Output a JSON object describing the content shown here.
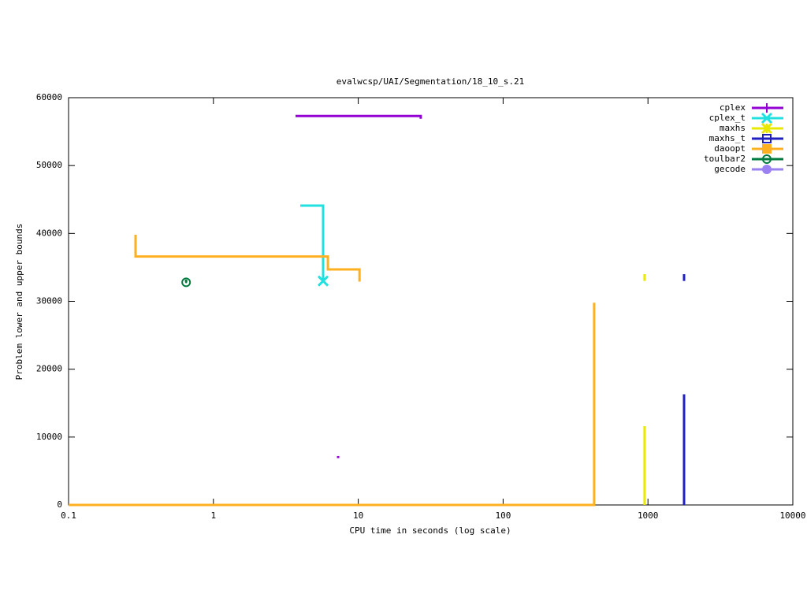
{
  "chart_data": {
    "type": "line",
    "title": "evalwcsp/UAI/Segmentation/18_10_s.21",
    "x_label": "CPU time in seconds (log scale)",
    "y_label": "Problem lower and upper bounds",
    "xscale": "log",
    "xlim": [
      0.1,
      10000
    ],
    "xticks": [
      0.1,
      1,
      10,
      100,
      1000,
      10000
    ],
    "ylim": [
      0,
      60000
    ],
    "yticks": [
      0,
      10000,
      20000,
      30000,
      40000,
      50000,
      60000
    ],
    "legend": "top-right",
    "series": [
      {
        "name": "cplex",
        "color": "#9400d3",
        "marker": "plus",
        "end_marker": false,
        "x": [
          3.69,
          27.0,
          27.0,
          null,
          7.26,
          7.26
        ],
        "values": [
          57300,
          57300,
          56900,
          null,
          7200,
          6900
        ]
      },
      {
        "name": "cplex_t",
        "color": "#20e0e0",
        "marker": "cross",
        "end_marker": true,
        "x": [
          3.98,
          5.72,
          5.72
        ],
        "values": [
          44100,
          44100,
          33000
        ]
      },
      {
        "name": "maxhs",
        "color": "#e8e800",
        "marker": "star",
        "end_marker": false,
        "x": [
          948,
          948,
          null,
          948,
          948
        ],
        "values": [
          34000,
          33000,
          null,
          11600,
          0
        ]
      },
      {
        "name": "maxhs_t",
        "color": "#2020c0",
        "marker": "square-open",
        "end_marker": false,
        "x": [
          1775,
          1775,
          null,
          1775,
          1775
        ],
        "values": [
          34000,
          33000,
          null,
          16300,
          0
        ]
      },
      {
        "name": "daoopt",
        "color": "#ffb020",
        "marker": "square",
        "end_marker": false,
        "x": [
          0.29,
          0.29,
          6.17,
          6.17,
          10.2,
          10.2,
          null,
          0.1,
          425,
          425
        ],
        "values": [
          39800,
          36600,
          36600,
          34700,
          34700,
          32900,
          null,
          0,
          0,
          29800
        ]
      },
      {
        "name": "toulbar2",
        "color": "#007a3d",
        "marker": "circle-open",
        "end_marker": true,
        "x": [
          0.648,
          0.648
        ],
        "values": [
          33200,
          32800
        ]
      },
      {
        "name": "gecode",
        "color": "#9a80f0",
        "marker": "circle",
        "end_marker": false,
        "x": [],
        "values": []
      }
    ]
  }
}
